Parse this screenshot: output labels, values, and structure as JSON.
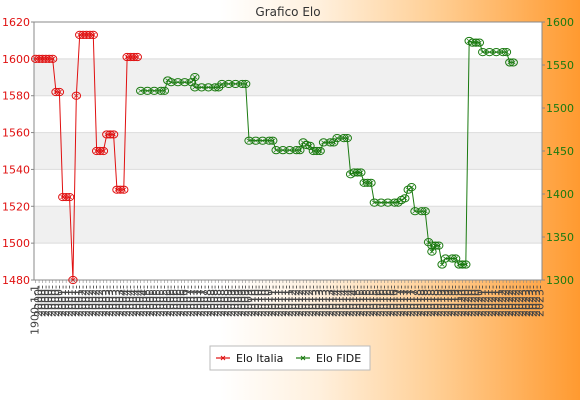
{
  "chart_data": {
    "type": "line",
    "title": "Grafico Elo",
    "legend_position": "bottom",
    "grid": true,
    "x_tick_count": 150,
    "x_tick_labels": [
      "1900-1-1",
      "2000-",
      "2001-",
      "2002-",
      "2003-",
      "2004-",
      "2005-",
      "2006-",
      "2007-",
      "2008-",
      "2009-",
      "2010-",
      "2011-",
      "2012-",
      "2013-",
      "2014-",
      "2015-",
      "2016-",
      "2017-",
      "2018-",
      "2019-",
      "2020-",
      "2021-",
      "2022-",
      "2023-"
    ],
    "series": [
      {
        "name": "Elo Italia",
        "axis": "left",
        "color": "#e01010",
        "ylim": [
          1480,
          1620
        ],
        "yticks": [
          1480,
          1500,
          1520,
          1540,
          1560,
          1580,
          1600,
          1620
        ],
        "points": [
          [
            0,
            1600
          ],
          [
            1,
            1600
          ],
          [
            2,
            1600
          ],
          [
            3,
            1600
          ],
          [
            4,
            1600
          ],
          [
            5,
            1600
          ],
          [
            6,
            1582
          ],
          [
            7,
            1582
          ],
          [
            8,
            1525
          ],
          [
            9,
            1525
          ],
          [
            10,
            1525
          ],
          [
            11,
            1480
          ],
          [
            12,
            1580
          ],
          [
            13,
            1613
          ],
          [
            14,
            1613
          ],
          [
            15,
            1613
          ],
          [
            16,
            1613
          ],
          [
            17,
            1613
          ],
          [
            18,
            1550
          ],
          [
            19,
            1550
          ],
          [
            20,
            1550
          ],
          [
            21,
            1559
          ],
          [
            22,
            1559
          ],
          [
            23,
            1559
          ],
          [
            24,
            1529
          ],
          [
            25,
            1529
          ],
          [
            26,
            1529
          ],
          [
            27,
            1601
          ],
          [
            28,
            1601
          ],
          [
            29,
            1601
          ],
          [
            30,
            1601
          ]
        ]
      },
      {
        "name": "Elo FIDE",
        "axis": "right",
        "color": "#1a7a10",
        "ylim": [
          1300,
          1600
        ],
        "yticks": [
          1300,
          1350,
          1400,
          1450,
          1500,
          1550,
          1600
        ],
        "points": [
          [
            31,
            1520
          ],
          [
            33,
            1520
          ],
          [
            35,
            1520
          ],
          [
            37,
            1520
          ],
          [
            38,
            1520
          ],
          [
            39,
            1532
          ],
          [
            40,
            1530
          ],
          [
            42,
            1530
          ],
          [
            44,
            1530
          ],
          [
            46,
            1530
          ],
          [
            47,
            1536
          ],
          [
            47,
            1524
          ],
          [
            49,
            1524
          ],
          [
            51,
            1524
          ],
          [
            53,
            1524
          ],
          [
            54,
            1524
          ],
          [
            55,
            1528
          ],
          [
            57,
            1528
          ],
          [
            59,
            1528
          ],
          [
            61,
            1528
          ],
          [
            62,
            1528
          ],
          [
            63,
            1462
          ],
          [
            65,
            1462
          ],
          [
            67,
            1462
          ],
          [
            69,
            1462
          ],
          [
            70,
            1462
          ],
          [
            71,
            1451
          ],
          [
            73,
            1451
          ],
          [
            75,
            1451
          ],
          [
            77,
            1451
          ],
          [
            78,
            1451
          ],
          [
            79,
            1460
          ],
          [
            80,
            1457
          ],
          [
            81,
            1456
          ],
          [
            82,
            1450
          ],
          [
            83,
            1450
          ],
          [
            84,
            1450
          ],
          [
            85,
            1460
          ],
          [
            87,
            1460
          ],
          [
            88,
            1460
          ],
          [
            89,
            1465
          ],
          [
            91,
            1465
          ],
          [
            92,
            1465
          ],
          [
            93,
            1423
          ],
          [
            94,
            1425
          ],
          [
            95,
            1425
          ],
          [
            96,
            1425
          ],
          [
            97,
            1413
          ],
          [
            98,
            1413
          ],
          [
            99,
            1413
          ],
          [
            100,
            1390
          ],
          [
            102,
            1390
          ],
          [
            104,
            1390
          ],
          [
            106,
            1390
          ],
          [
            107,
            1390
          ],
          [
            108,
            1393
          ],
          [
            109,
            1395
          ],
          [
            110,
            1405
          ],
          [
            111,
            1408
          ],
          [
            112,
            1380
          ],
          [
            114,
            1380
          ],
          [
            115,
            1380
          ],
          [
            116,
            1344
          ],
          [
            117,
            1340
          ],
          [
            117,
            1333
          ],
          [
            118,
            1340
          ],
          [
            119,
            1340
          ],
          [
            120,
            1318
          ],
          [
            121,
            1325
          ],
          [
            123,
            1325
          ],
          [
            124,
            1325
          ],
          [
            125,
            1318
          ],
          [
            126,
            1318
          ],
          [
            127,
            1318
          ],
          [
            128,
            1578
          ],
          [
            129,
            1576
          ],
          [
            130,
            1576
          ],
          [
            131,
            1576
          ],
          [
            132,
            1565
          ],
          [
            134,
            1565
          ],
          [
            136,
            1565
          ],
          [
            138,
            1565
          ],
          [
            139,
            1565
          ],
          [
            140,
            1553
          ],
          [
            141,
            1553
          ]
        ]
      }
    ]
  }
}
